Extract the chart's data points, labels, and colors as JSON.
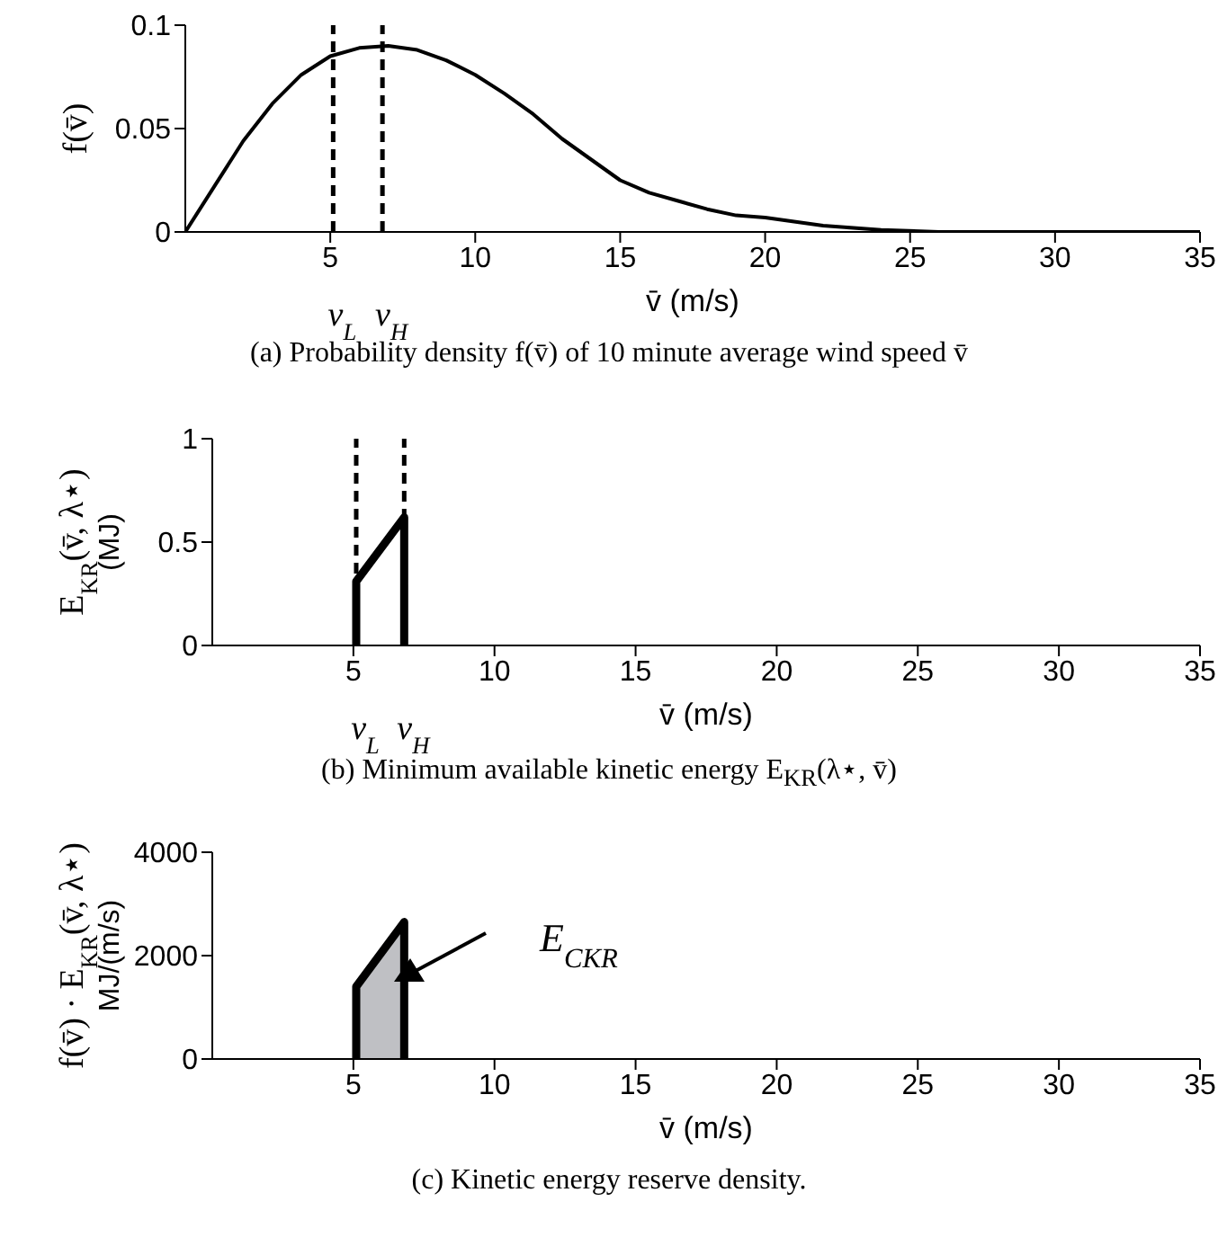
{
  "chart_data": [
    {
      "type": "line",
      "xlabel": "v̄  (m/s)",
      "ylabel": "f(v̄)",
      "xlim": [
        0,
        35
      ],
      "xticks": [
        5,
        10,
        15,
        20,
        25,
        30,
        35
      ],
      "ylim": [
        0,
        0.1
      ],
      "yticks": [
        0,
        0.05,
        0.1
      ],
      "series": [
        {
          "color": "#000000",
          "x": [
            0,
            1,
            2,
            3,
            4,
            5,
            6,
            7,
            8,
            9,
            10,
            11,
            12,
            13,
            14,
            15,
            16,
            17,
            18,
            19,
            20,
            22,
            24,
            26,
            28,
            35
          ],
          "values": [
            0,
            0.022,
            0.044,
            0.062,
            0.076,
            0.085,
            0.089,
            0.09,
            0.088,
            0.083,
            0.076,
            0.067,
            0.057,
            0.045,
            0.035,
            0.025,
            0.019,
            0.015,
            0.011,
            0.008,
            0.007,
            0.003,
            0.001,
            0,
            0,
            0
          ]
        }
      ],
      "ref_lines": [
        {
          "axis": "x",
          "value": 5.1,
          "label": "v$_{L}$",
          "color": "#000000",
          "line_style": "dashed"
        },
        {
          "axis": "x",
          "value": 6.8,
          "label": "v$_{H}$",
          "color": "#000000",
          "line_style": "dashed"
        }
      ],
      "annotations": [
        "(a) Probability density f(v̄) of 10 minute average wind speed v̄"
      ]
    },
    {
      "type": "line",
      "xlabel": "v̄  (m/s)",
      "ylabel": "E$_{KR}$(v̄, λ⋆)\n(MJ)",
      "xlim": [
        0,
        35
      ],
      "xticks": [
        5,
        10,
        15,
        20,
        25,
        30,
        35
      ],
      "ylim": [
        0,
        1
      ],
      "yticks": [
        0,
        0.5,
        1
      ],
      "series": [
        {
          "color": "#000000",
          "x": [
            5.1,
            5.1,
            6.8,
            6.8
          ],
          "values": [
            0,
            0.31,
            0.62,
            0
          ]
        }
      ],
      "ref_lines": [
        {
          "axis": "x",
          "value": 5.1,
          "label": "v$_{L}$",
          "color": "#000000",
          "line_style": "dashed"
        },
        {
          "axis": "x",
          "value": 6.8,
          "label": "v$_{H}$",
          "color": "#000000",
          "line_style": "dashed"
        }
      ],
      "annotations": [
        "(b) Minimum available kinetic energy E$_{KR}$(λ⋆, v̄)"
      ]
    },
    {
      "type": "area",
      "xlabel": "v̄  (m/s)",
      "ylabel": "f(v̄) · E$_{KR}$(v̄, λ⋆)\nMJ/(m/s)",
      "xlim": [
        0,
        35
      ],
      "xticks": [
        5,
        10,
        15,
        20,
        25,
        30,
        35
      ],
      "ylim": [
        0,
        4000
      ],
      "yticks": [
        0,
        2000,
        4000
      ],
      "series": [
        {
          "color": "#bfc0c4",
          "x": [
            5.1,
            5.1,
            6.8,
            6.8
          ],
          "values": [
            0,
            1400,
            2650,
            0
          ]
        }
      ],
      "annotations": [
        "E$_{CKR}$",
        "(c) Kinetic energy reserve density."
      ]
    }
  ]
}
